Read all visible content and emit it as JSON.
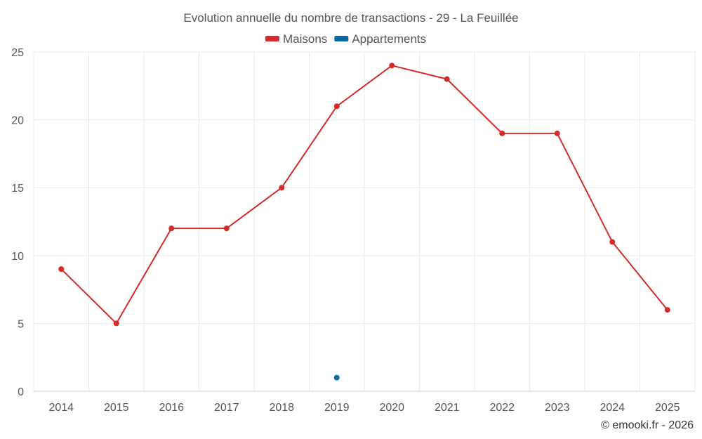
{
  "chart_data": {
    "type": "line",
    "title": "Evolution annuelle du nombre de transactions - 29 - La Feuillée",
    "categories": [
      "2014",
      "2015",
      "2016",
      "2017",
      "2018",
      "2019",
      "2020",
      "2021",
      "2022",
      "2023",
      "2024",
      "2025"
    ],
    "series": [
      {
        "name": "Maisons",
        "color": "#d42a2a",
        "values": [
          9,
          5,
          12,
          12,
          15,
          21,
          24,
          23,
          19,
          19,
          11,
          6
        ]
      },
      {
        "name": "Appartements",
        "color": "#0b66a6",
        "values": [
          null,
          null,
          null,
          null,
          null,
          1,
          null,
          null,
          null,
          null,
          null,
          null
        ]
      }
    ],
    "ylim": [
      0,
      25
    ],
    "yticks": [
      0,
      5,
      10,
      15,
      20,
      25
    ],
    "xlabel": "",
    "ylabel": "",
    "legend": "top-center",
    "grid": true
  },
  "credit": "© emooki.fr - 2026"
}
